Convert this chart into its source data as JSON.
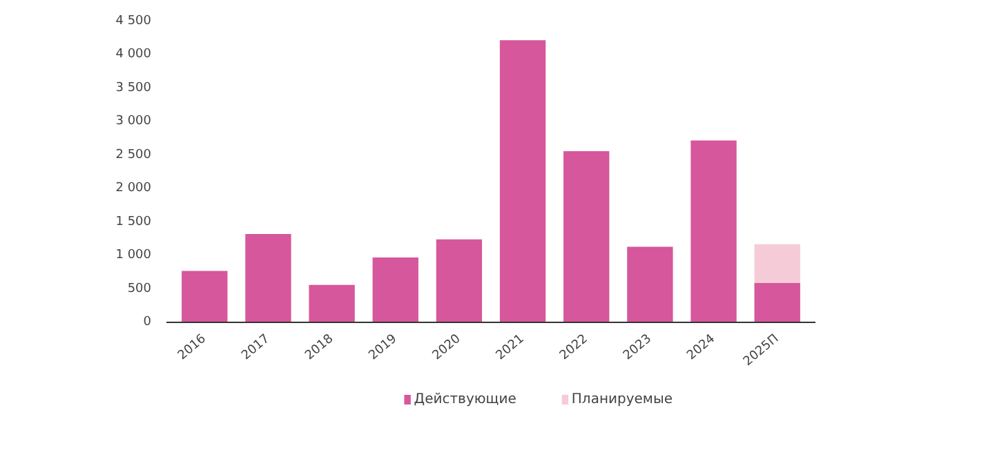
{
  "chart_data": {
    "type": "bar",
    "stacked": true,
    "categories": [
      "2016",
      "2017",
      "2018",
      "2019",
      "2020",
      "2021",
      "2022",
      "2023",
      "2024",
      "2025П"
    ],
    "series": [
      {
        "name": "Действующие",
        "color": "#d6579b",
        "values": [
          770,
          1320,
          560,
          970,
          1240,
          4220,
          2560,
          1130,
          2720,
          590
        ]
      },
      {
        "name": "Планируемые",
        "color": "#f6cbd8",
        "values": [
          null,
          null,
          null,
          null,
          null,
          null,
          null,
          null,
          null,
          580
        ]
      }
    ],
    "ylim": [
      0,
      4500
    ],
    "yticks": [
      0,
      500,
      {
        "value": 1000,
        "label": "1 000"
      },
      {
        "value": 1500,
        "label": "1 500"
      },
      {
        "value": 2000,
        "label": "2 000"
      },
      {
        "value": 2500,
        "label": "2 500"
      },
      {
        "value": 3000,
        "label": "3 000"
      },
      {
        "value": 3500,
        "label": "3 500"
      },
      {
        "value": 4000,
        "label": "4 000"
      },
      {
        "value": 4500,
        "label": "4 500"
      }
    ],
    "grid": false,
    "legend": "bottom"
  }
}
